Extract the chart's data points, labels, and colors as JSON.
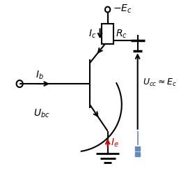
{
  "bg_color": "#ffffff",
  "line_color": "#000000",
  "red_color": "#cc0000",
  "blue_color": "#6688bb",
  "fig_width": 2.6,
  "fig_height": 2.68,
  "dpi": 100
}
